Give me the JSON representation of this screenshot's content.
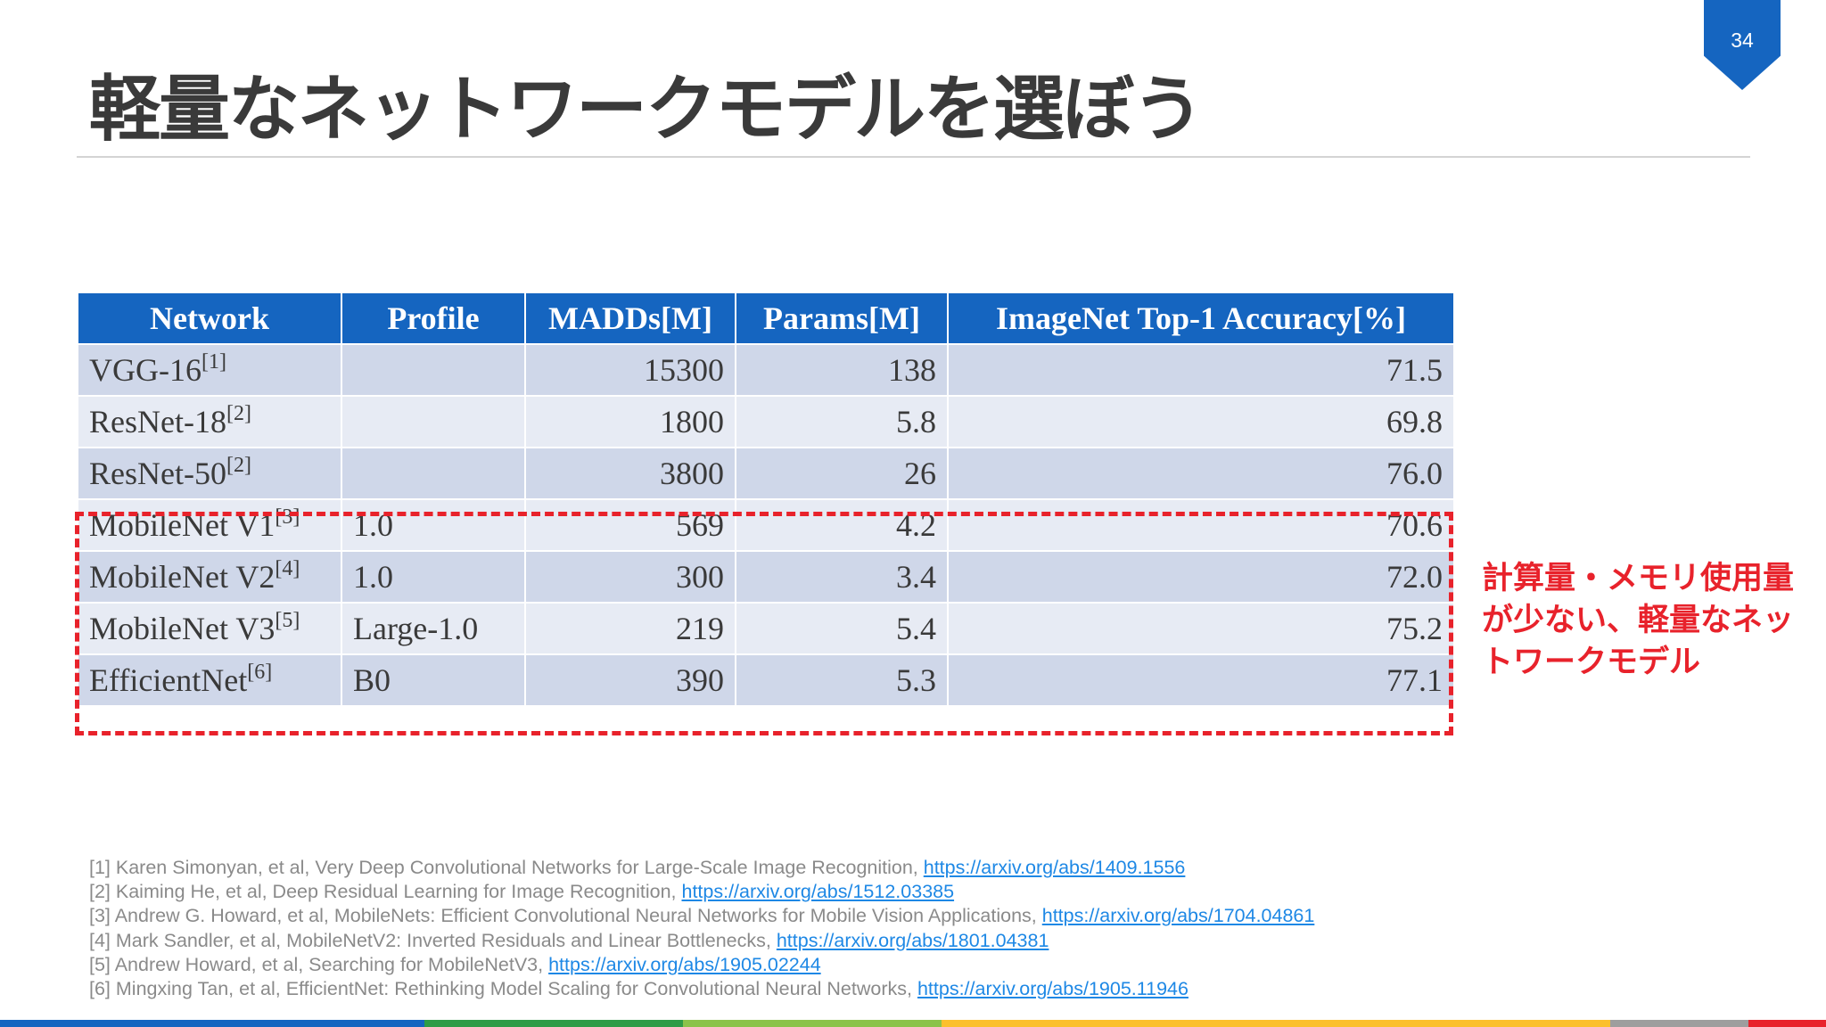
{
  "slide": {
    "page_number": "34",
    "title": "軽量なネットワークモデルを選ぼう"
  },
  "table": {
    "headers": [
      "Network",
      "Profile",
      "MADDs[M]",
      "Params[M]",
      "ImageNet Top-1 Accuracy[%]"
    ],
    "rows": [
      {
        "network": "VGG-16",
        "ref": "[1]",
        "profile": "",
        "madds": "15300",
        "params": "138",
        "accuracy": "71.5"
      },
      {
        "network": "ResNet-18",
        "ref": "[2]",
        "profile": "",
        "madds": "1800",
        "params": "5.8",
        "accuracy": "69.8"
      },
      {
        "network": "ResNet-50",
        "ref": "[2]",
        "profile": "",
        "madds": "3800",
        "params": "26",
        "accuracy": "76.0"
      },
      {
        "network": "MobileNet V1",
        "ref": "[3]",
        "profile": "1.0",
        "madds": "569",
        "params": "4.2",
        "accuracy": "70.6"
      },
      {
        "network": "MobileNet V2",
        "ref": "[4]",
        "profile": "1.0",
        "madds": "300",
        "params": "3.4",
        "accuracy": "72.0"
      },
      {
        "network": "MobileNet V3",
        "ref": "[5]",
        "profile": "Large-1.0",
        "madds": "219",
        "params": "5.4",
        "accuracy": "75.2"
      },
      {
        "network": "EfficientNet",
        "ref": "[6]",
        "profile": "B0",
        "madds": "390",
        "params": "5.3",
        "accuracy": "77.1"
      }
    ]
  },
  "callout": {
    "lines": [
      "計算量・メモリ使用量",
      "が少ない、軽量なネッ",
      "トワークモデル"
    ]
  },
  "references": [
    {
      "text": "[1] Karen Simonyan, et al, Very Deep Convolutional Networks for Large-Scale Image Recognition, ",
      "url": "https://arxiv.org/abs/1409.1556"
    },
    {
      "text": "[2] Kaiming He, et al, Deep Residual Learning for Image Recognition, ",
      "url": "https://arxiv.org/abs/1512.03385"
    },
    {
      "text": "[3] Andrew G. Howard, et al, MobileNets: Efficient Convolutional Neural Networks for Mobile Vision Applications, ",
      "url": "https://arxiv.org/abs/1704.04861"
    },
    {
      "text": "[4] Mark Sandler, et al, MobileNetV2: Inverted Residuals and Linear Bottlenecks, ",
      "url": "https://arxiv.org/abs/1801.04381"
    },
    {
      "text": "[5] Andrew Howard, et al, Searching for MobileNetV3, ",
      "url": "https://arxiv.org/abs/1905.02244"
    },
    {
      "text": "[6] Mingxing Tan, et al, EfficientNet: Rethinking Model Scaling for Convolutional Neural Networks, ",
      "url": "https://arxiv.org/abs/1905.11946"
    }
  ],
  "colors": {
    "accent_blue": "#1565c0",
    "highlight_red": "#e8222b",
    "bottom_bar": [
      "#1565c0",
      "#2e9c47",
      "#8bc34a",
      "#fbc02d",
      "#9e9e9e",
      "#e8222b"
    ]
  }
}
